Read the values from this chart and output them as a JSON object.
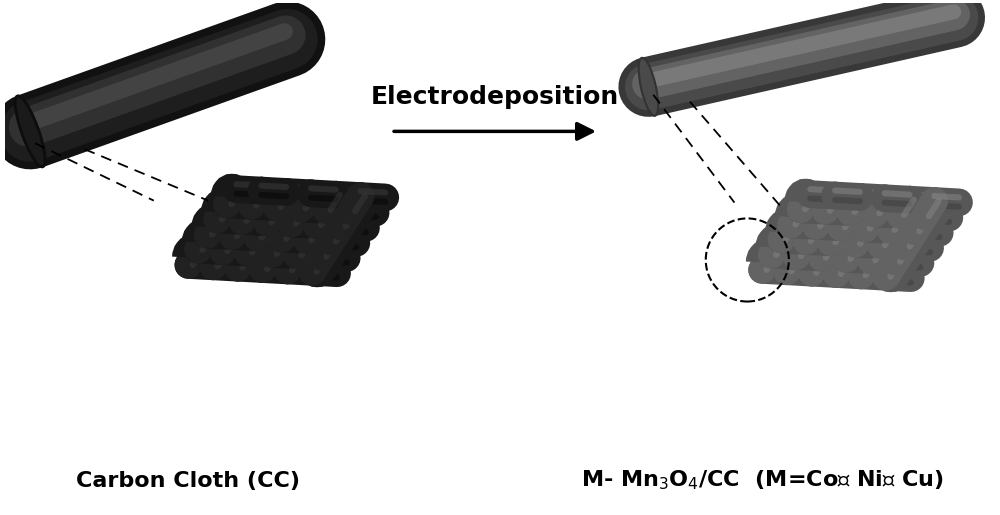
{
  "background_color": "#ffffff",
  "arrow_label": "Electrodeposition",
  "arrow_label_fontsize": 18,
  "arrow_label_fontweight": "bold",
  "label_left": "Carbon Cloth (CC)",
  "label_right": "M- Mn$_3$O$_4$/CC  (M=Co、 Ni、 Cu)",
  "label_fontsize": 16,
  "label_fontweight": "bold",
  "figsize": [
    10.0,
    5.15
  ],
  "dpi": 100
}
